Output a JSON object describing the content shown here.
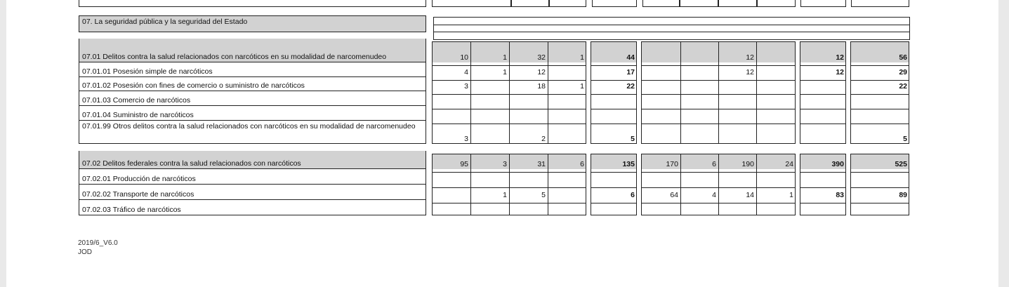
{
  "section_title": "07. La seguridad pública y la seguridad del Estado",
  "groups": [
    {
      "header": "07.01 Delitos contra la salud relacionados con narcóticos en su modalidad de narcomenudeo",
      "totals": [
        "10",
        "1",
        "32",
        "1",
        "44",
        "",
        "",
        "12",
        "",
        "12",
        "56"
      ],
      "rows": [
        {
          "label": "07.01.01 Posesión simple de narcóticos",
          "values": [
            "4",
            "1",
            "12",
            "",
            "17",
            "",
            "",
            "12",
            "",
            "12",
            "29"
          ]
        },
        {
          "label": "07.01.02 Posesión con fines de comercio o suministro de narcóticos",
          "values": [
            "3",
            "",
            "18",
            "1",
            "22",
            "",
            "",
            "",
            "",
            "",
            "22"
          ]
        },
        {
          "label": "07.01.03 Comercio de narcóticos",
          "values": [
            "",
            "",
            "",
            "",
            "",
            "",
            "",
            "",
            "",
            "",
            ""
          ]
        },
        {
          "label": "07.01.04 Suministro de narcóticos",
          "values": [
            "",
            "",
            "",
            "",
            "",
            "",
            "",
            "",
            "",
            "",
            ""
          ]
        },
        {
          "label": "07.01.99 Otros delitos contra la salud relacionados con narcóticos en su modalidad de narcomenudeo",
          "values": [
            "3",
            "",
            "2",
            "",
            "5",
            "",
            "",
            "",
            "",
            "",
            "5"
          ]
        }
      ]
    },
    {
      "header": "07.02 Delitos federales contra la salud relacionados con narcóticos",
      "totals": [
        "95",
        "3",
        "31",
        "6",
        "135",
        "170",
        "6",
        "190",
        "24",
        "390",
        "525"
      ],
      "rows": [
        {
          "label": "07.02.01 Producción de narcóticos",
          "values": [
            "",
            "",
            "",
            "",
            "",
            "",
            "",
            "",
            "",
            "",
            ""
          ]
        },
        {
          "label": "07.02.02 Transporte de narcóticos",
          "values": [
            "",
            "1",
            "5",
            "",
            "6",
            "64",
            "4",
            "14",
            "1",
            "83",
            "89"
          ]
        },
        {
          "label": "07.02.03 Tráfico de narcóticos",
          "values": [
            "",
            "",
            "",
            "",
            "",
            "",
            "",
            "",
            "",
            "",
            ""
          ]
        }
      ]
    }
  ],
  "footer": {
    "version": "2019/6_V6.0",
    "code": "JOD"
  }
}
